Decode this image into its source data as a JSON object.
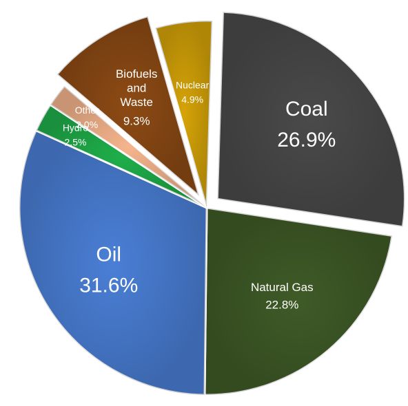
{
  "chart_data": {
    "type": "pie",
    "categories": [
      "Coal",
      "Natural Gas",
      "Oil",
      "Hydro",
      "Other",
      "Biofuels and Waste",
      "Nuclear"
    ],
    "values": [
      26.9,
      22.8,
      31.6,
      2.5,
      2.0,
      9.3,
      4.9
    ],
    "value_labels": [
      "26.9%",
      "22.8%",
      "31.6%",
      "2.5%",
      "2.0%",
      "9.3%",
      "4.9%"
    ],
    "colors": [
      "#4a4a4a",
      "#3f5b27",
      "#4a7fd6",
      "#1fae4a",
      "#f5b48c",
      "#8c4a14",
      "#d6a408"
    ],
    "explode": [
      true,
      false,
      false,
      false,
      false,
      true,
      false
    ]
  }
}
